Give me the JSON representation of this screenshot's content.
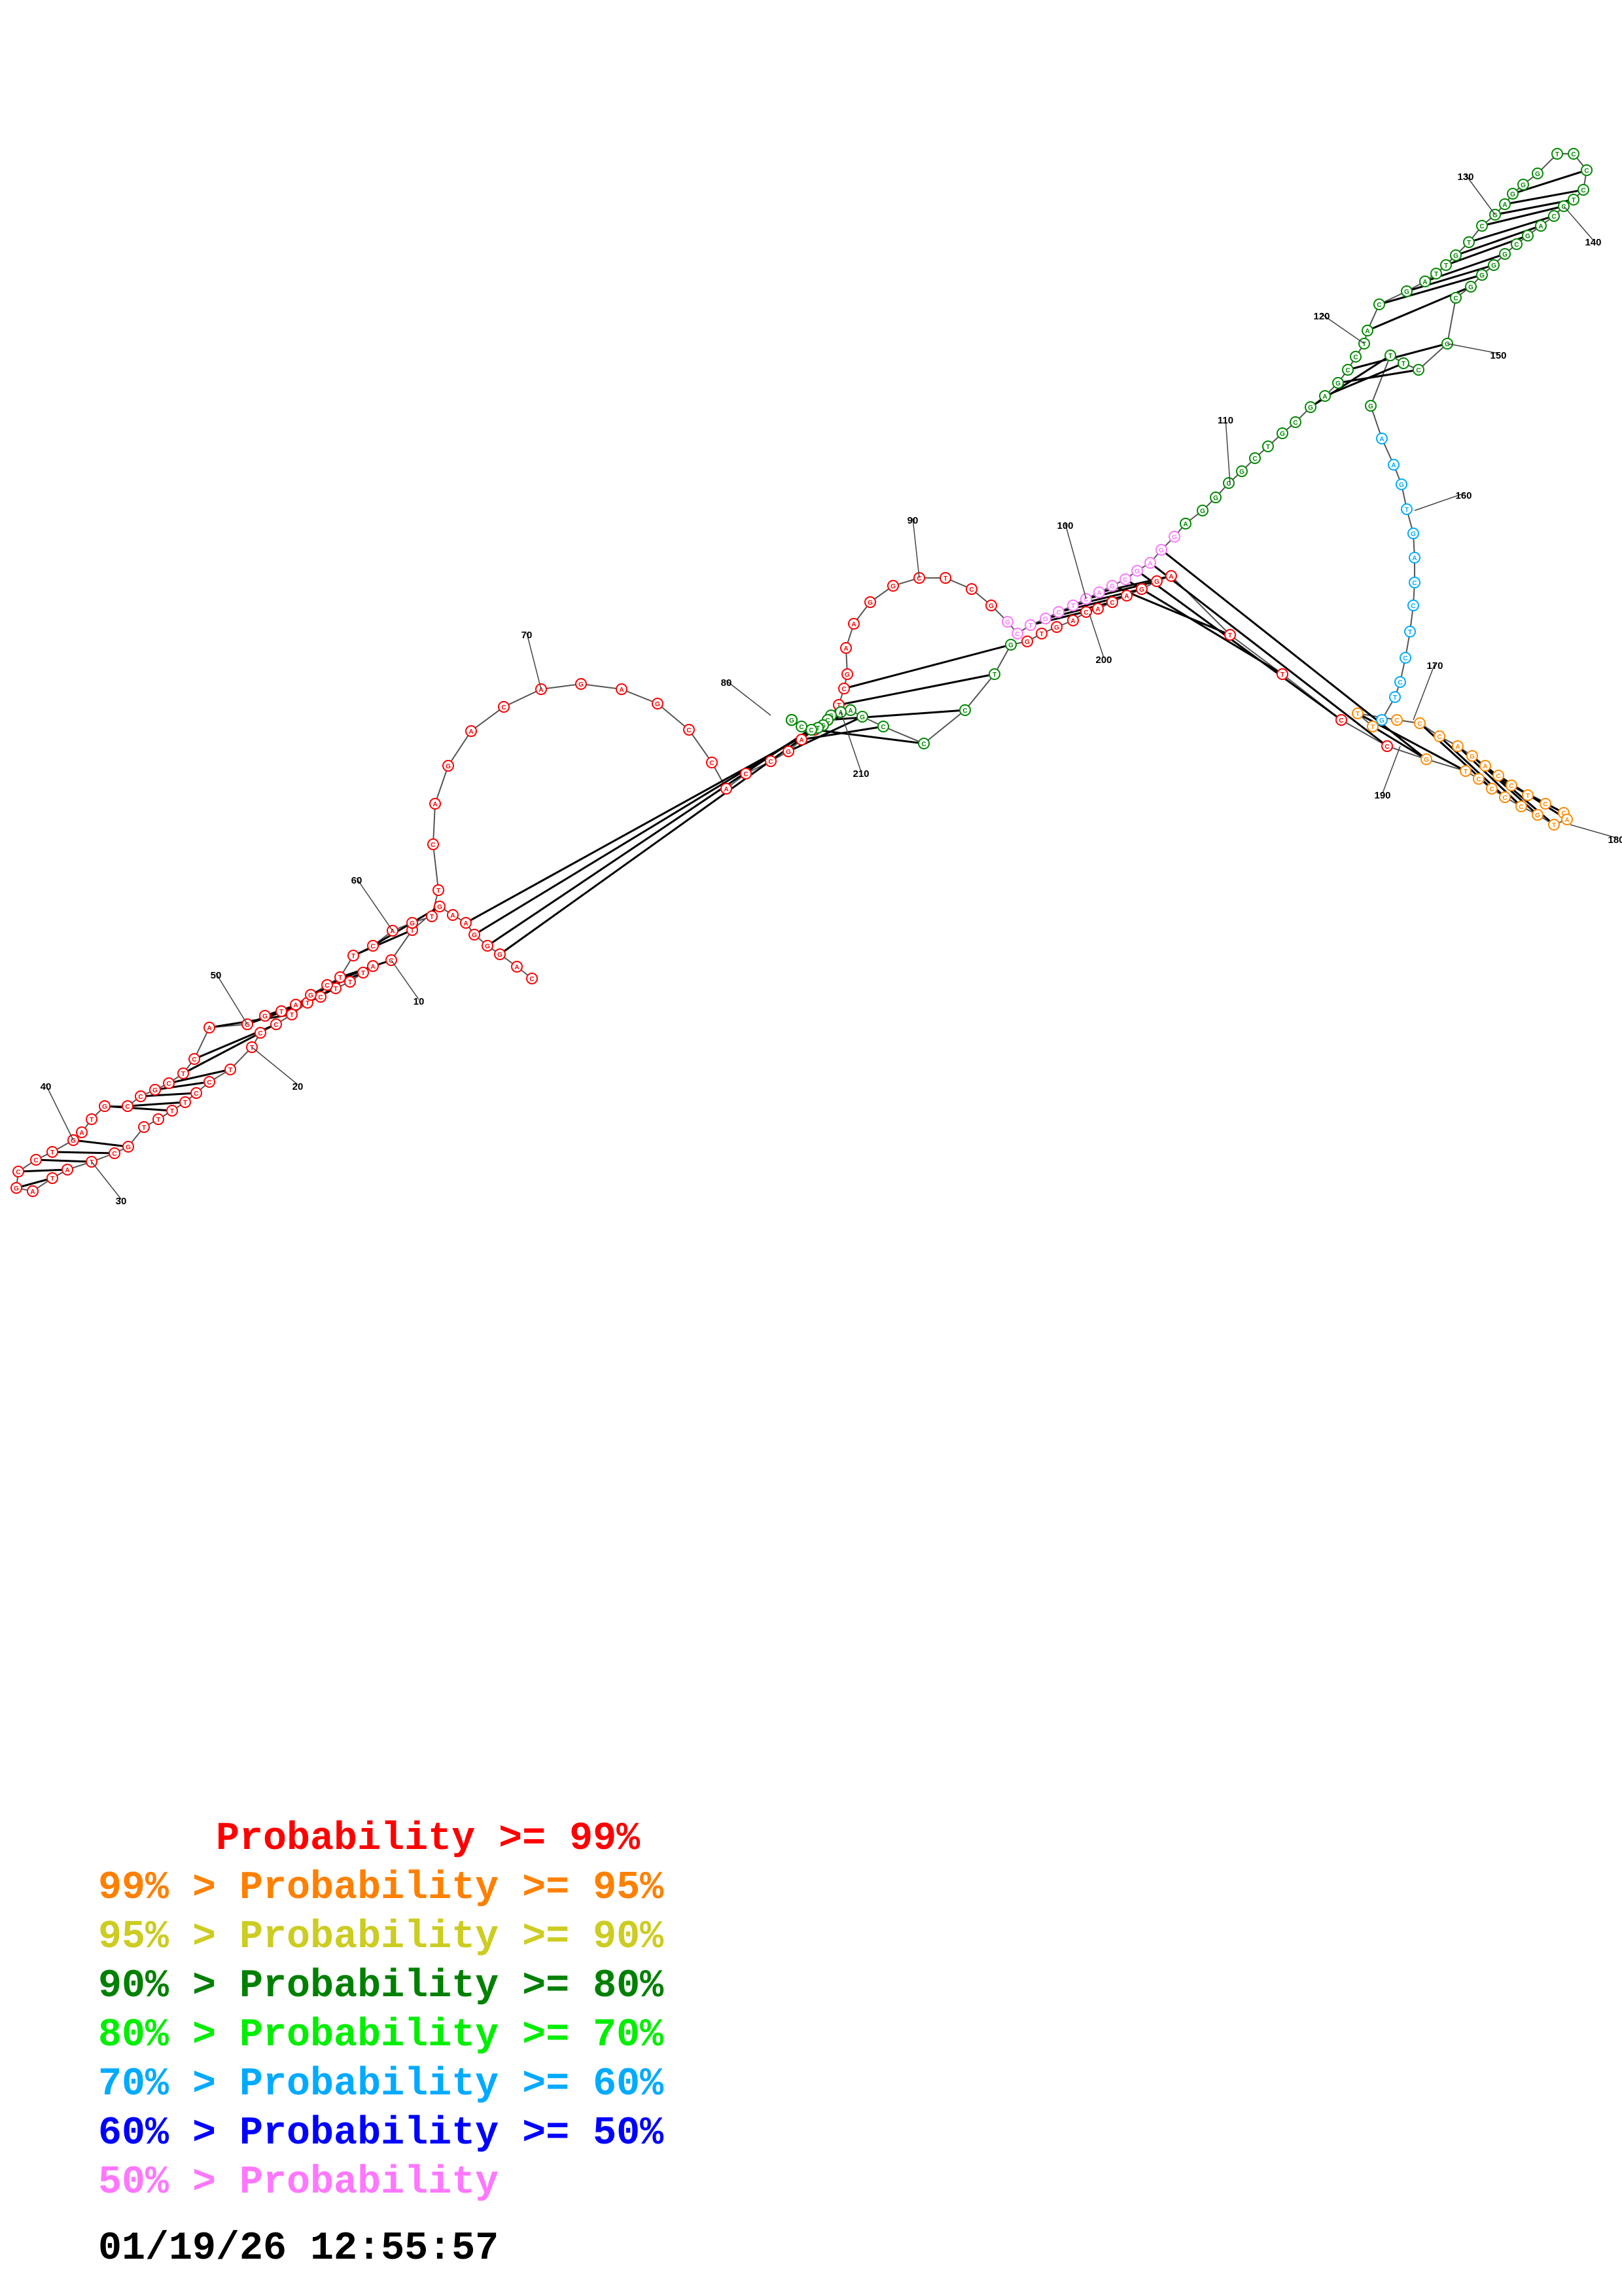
{
  "diagram": {
    "sequence": "CAGGGAAGTCATTTCTTCCTTCCTTTTGCTATAGCCTGATGCCGCTCAGGTAGCTTCAGTTCAGACAGAGCCACCGAAATCGAAGGCTCGGCTGCTCAGCGAGGAGGCGCTGCGAGCCTACGATTGTCGAGGGTCCCTCCAGCGGGGCGCTTGAAGTGACCTCCTGTTCCCAGACCTCCATGCCCCTGCCTTAGGACACAGTGGTCCCGAAGCGTCCTAGGG",
    "pairs": [
      [
        3,
        213
      ],
      [
        4,
        212
      ],
      [
        5,
        211
      ],
      [
        6,
        210
      ],
      [
        8,
        57
      ],
      [
        9,
        56
      ],
      [
        10,
        55
      ],
      [
        11,
        54
      ],
      [
        12,
        53
      ],
      [
        14,
        51
      ],
      [
        15,
        50
      ],
      [
        16,
        49
      ],
      [
        17,
        48
      ],
      [
        18,
        47
      ],
      [
        19,
        46
      ],
      [
        21,
        45
      ],
      [
        22,
        44
      ],
      [
        23,
        43
      ],
      [
        24,
        42
      ],
      [
        25,
        41
      ],
      [
        28,
        38
      ],
      [
        29,
        37
      ],
      [
        30,
        36
      ],
      [
        31,
        35
      ],
      [
        32,
        34
      ],
      [
        76,
        209
      ],
      [
        77,
        208
      ],
      [
        78,
        207
      ],
      [
        79,
        206
      ],
      [
        80,
        205
      ],
      [
        81,
        204
      ],
      [
        93,
        198
      ],
      [
        94,
        197
      ],
      [
        95,
        196
      ],
      [
        96,
        195
      ],
      [
        97,
        194
      ],
      [
        98,
        193
      ],
      [
        99,
        192
      ],
      [
        100,
        191
      ],
      [
        101,
        190
      ],
      [
        102,
        189
      ],
      [
        103,
        188
      ],
      [
        114,
        152
      ],
      [
        115,
        151
      ],
      [
        116,
        150
      ],
      [
        117,
        149
      ],
      [
        120,
        147
      ],
      [
        121,
        146
      ],
      [
        122,
        145
      ],
      [
        123,
        144
      ],
      [
        125,
        142
      ],
      [
        126,
        141
      ],
      [
        127,
        140
      ],
      [
        128,
        139
      ],
      [
        129,
        138
      ],
      [
        130,
        137
      ],
      [
        131,
        136
      ],
      [
        167,
        188
      ],
      [
        168,
        187
      ],
      [
        170,
        185
      ],
      [
        171,
        184
      ],
      [
        172,
        183
      ],
      [
        173,
        182
      ],
      [
        174,
        181
      ],
      [
        175,
        180
      ],
      [
        176,
        179
      ]
    ],
    "confidence_colors": {
      "red": "#ff0000",
      "orange": "#ff8800",
      "yellow": "#cccc22",
      "darkgreen": "#008800",
      "green": "#22ee22",
      "cyan": "#00aaff",
      "blue": "#0000ff",
      "pink": "#ff77ff"
    },
    "index_labels": [
      "10",
      "20",
      "30",
      "40",
      "50",
      "60",
      "70",
      "80",
      "90",
      "100",
      "110",
      "120",
      "130",
      "140",
      "150",
      "160",
      "170",
      "180",
      "190",
      "200",
      "210"
    ]
  },
  "legend": [
    {
      "text": "     Probability >= 99%",
      "color": "#ff0000"
    },
    {
      "text": "99% > Probability >= 95%",
      "color": "#ff8000"
    },
    {
      "text": "95% > Probability >= 90%",
      "color": "#cccc22"
    },
    {
      "text": "90% > Probability >= 80%",
      "color": "#008000"
    },
    {
      "text": "80% > Probability >= 70%",
      "color": "#00ee00"
    },
    {
      "text": "70% > Probability >= 60%",
      "color": "#00aaff"
    },
    {
      "text": "60% > Probability >= 50%",
      "color": "#0000ff"
    },
    {
      "text": "50% > Probability",
      "color": "#ff77ff"
    }
  ],
  "timestamp": "01/19/26 12:55:57"
}
